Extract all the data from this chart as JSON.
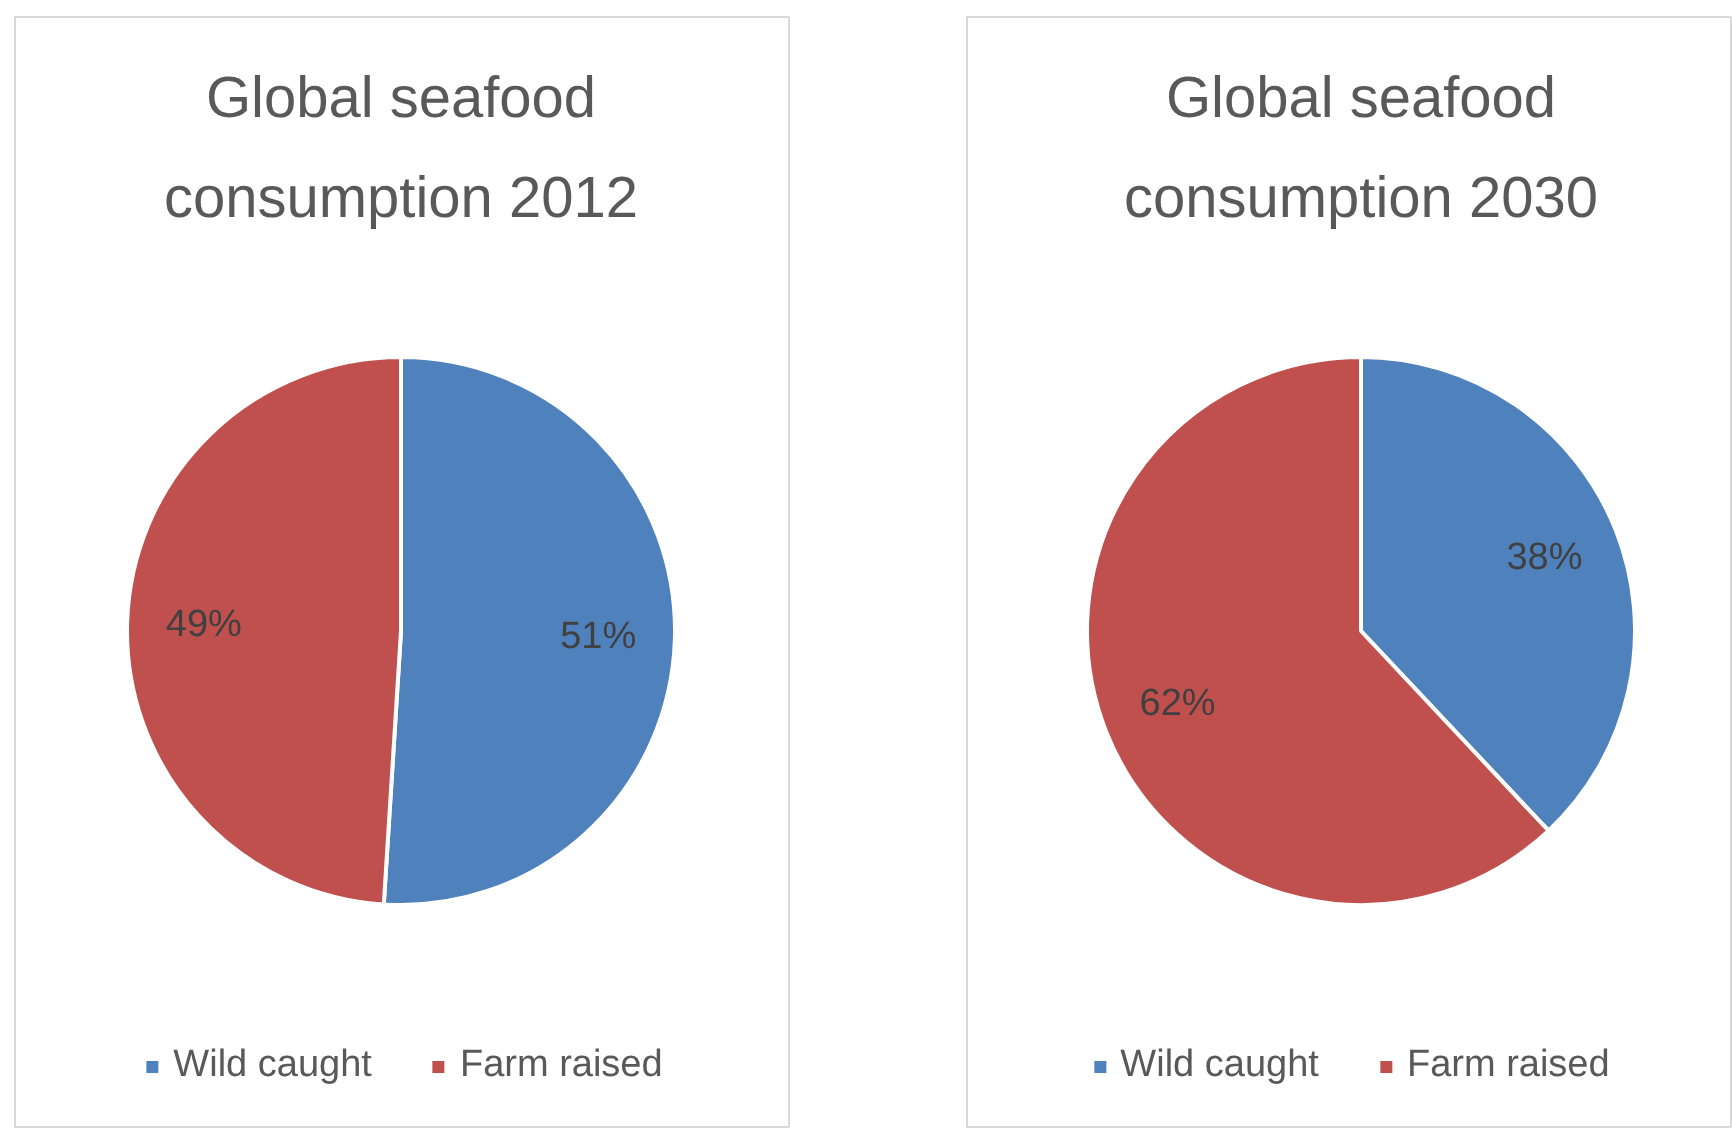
{
  "chart_data": [
    {
      "type": "pie",
      "title": "Global seafood consumption 2012",
      "categories": [
        "Wild caught",
        "Farm raised"
      ],
      "values": [
        51,
        49
      ],
      "colors": [
        "#4f81bd",
        "#c0504d"
      ],
      "value_labels": [
        "51%",
        "49%"
      ],
      "legend": "bottom"
    },
    {
      "type": "pie",
      "title": "Global seafood consumption 2030",
      "categories": [
        "Wild caught",
        "Farm raised"
      ],
      "values": [
        38,
        62
      ],
      "colors": [
        "#4f81bd",
        "#c0504d"
      ],
      "value_labels": [
        "38%",
        "62%"
      ],
      "legend": "bottom"
    }
  ]
}
